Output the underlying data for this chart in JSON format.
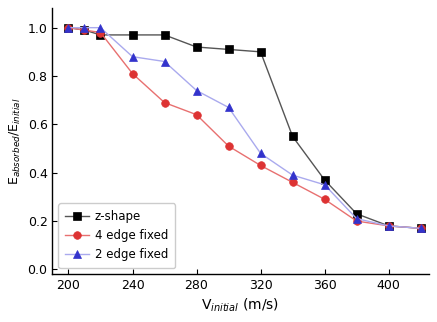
{
  "z_shape": {
    "x": [
      200,
      210,
      220,
      240,
      260,
      280,
      300,
      320,
      340,
      360,
      380,
      400,
      420
    ],
    "y": [
      1.0,
      0.99,
      0.97,
      0.97,
      0.97,
      0.92,
      0.91,
      0.9,
      0.55,
      0.37,
      0.23,
      0.18,
      0.17
    ],
    "color": "#555555",
    "marker": "s",
    "label": "z-shape",
    "linestyle": "-",
    "markercolor": "black"
  },
  "four_edge": {
    "x": [
      200,
      210,
      220,
      240,
      260,
      280,
      300,
      320,
      340,
      360,
      380,
      400,
      420
    ],
    "y": [
      1.0,
      0.99,
      0.98,
      0.81,
      0.69,
      0.64,
      0.51,
      0.43,
      0.36,
      0.29,
      0.2,
      0.18,
      0.17
    ],
    "color": "#e87070",
    "marker": "o",
    "label": "4 edge fixed",
    "linestyle": "-",
    "markercolor": "#dd3333"
  },
  "two_edge": {
    "x": [
      200,
      210,
      220,
      240,
      260,
      280,
      300,
      320,
      340,
      360,
      380,
      400,
      420
    ],
    "y": [
      1.0,
      1.0,
      1.0,
      0.88,
      0.86,
      0.74,
      0.67,
      0.48,
      0.39,
      0.35,
      0.21,
      0.18,
      0.17
    ],
    "color": "#aaaaee",
    "marker": "^",
    "label": "2 edge fixed",
    "linestyle": "-",
    "markercolor": "#3333cc"
  },
  "xlabel": "V$_{initial}$ (m/s)",
  "ylabel": "E$_{absorbed}$/E$_{initial}$",
  "xlim": [
    190,
    425
  ],
  "ylim": [
    -0.02,
    1.08
  ],
  "xticks": [
    200,
    240,
    280,
    320,
    360,
    400
  ],
  "yticks": [
    0.0,
    0.2,
    0.4,
    0.6,
    0.8,
    1.0
  ],
  "legend_loc": "lower left",
  "figsize": [
    4.37,
    3.22
  ],
  "dpi": 100
}
